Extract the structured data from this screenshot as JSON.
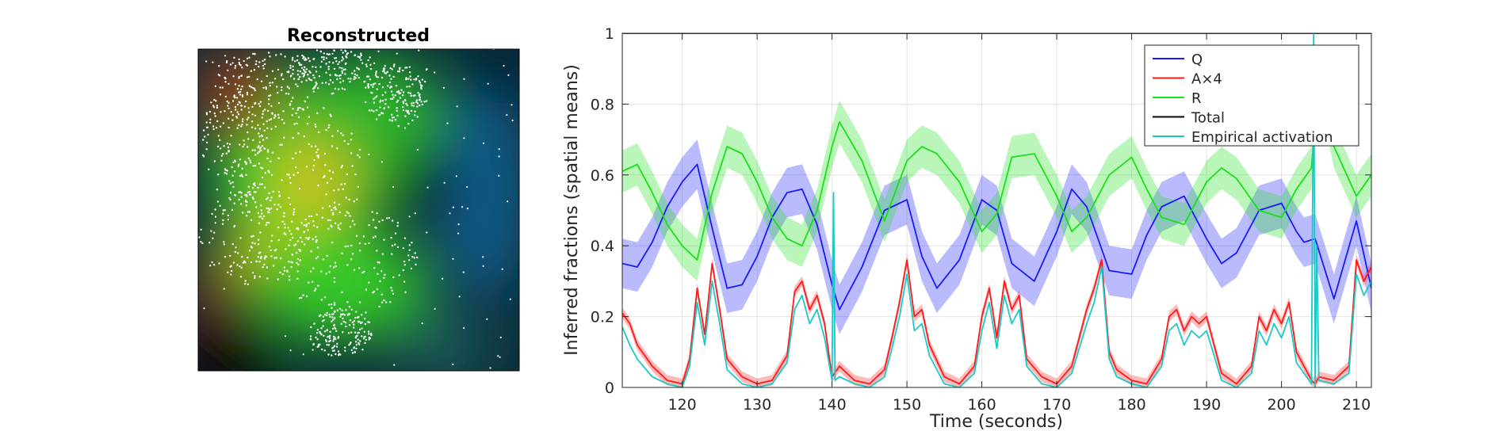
{
  "chart_data": [
    {
      "type": "heatmap",
      "title": "Reconstructed",
      "description_colors": [
        "#000000",
        "#7a1f1f",
        "#c9c21a",
        "#3ad12a",
        "#2a7a2a",
        "#0b5c8a",
        "#06264a"
      ]
    },
    {
      "type": "line",
      "title": "",
      "xlabel": "Time (seconds)",
      "ylabel": "Inferred fractions (spatial means)",
      "xlim": [
        112,
        212
      ],
      "ylim": [
        0,
        1
      ],
      "xticks": [
        "120",
        "130",
        "140",
        "150",
        "160",
        "170",
        "180",
        "190",
        "200",
        "210"
      ],
      "yticks": [
        "0",
        "0.2",
        "0.4",
        "0.6",
        "0.8",
        "1"
      ],
      "grid": true,
      "legend_position": "top-right",
      "series": [
        {
          "name": "Q",
          "color": "#1a1aff",
          "x": [
            112,
            114,
            116,
            118,
            120,
            122,
            124,
            126,
            128,
            130,
            132,
            134,
            136,
            138,
            140,
            141,
            144,
            147,
            150,
            152,
            154,
            157,
            160,
            162,
            164,
            167,
            170,
            172,
            174,
            177,
            180,
            182,
            184,
            187,
            190,
            192,
            194,
            197,
            200,
            202,
            203,
            204.5,
            207,
            210,
            212
          ],
          "y": [
            0.35,
            0.34,
            0.41,
            0.51,
            0.58,
            0.63,
            0.45,
            0.28,
            0.29,
            0.37,
            0.48,
            0.55,
            0.56,
            0.46,
            0.29,
            0.22,
            0.34,
            0.5,
            0.53,
            0.37,
            0.28,
            0.36,
            0.53,
            0.5,
            0.35,
            0.3,
            0.44,
            0.56,
            0.51,
            0.33,
            0.32,
            0.43,
            0.51,
            0.54,
            0.42,
            0.35,
            0.38,
            0.5,
            0.52,
            0.44,
            0.41,
            0.42,
            0.25,
            0.47,
            0.28
          ]
        },
        {
          "name": "A×4",
          "color": "#ff1a1a",
          "x": [
            112,
            113,
            114,
            116,
            118,
            120,
            121,
            122,
            123,
            124,
            125,
            126,
            128,
            130,
            132,
            134,
            135,
            136,
            137,
            138,
            139,
            140,
            141,
            143,
            145,
            147,
            148,
            149,
            150,
            151,
            152,
            153,
            155,
            157,
            159,
            160,
            161,
            162,
            163,
            164,
            165,
            166,
            168,
            170,
            172,
            174,
            175,
            176,
            177,
            178,
            180,
            182,
            184,
            185,
            186,
            187,
            188,
            189,
            190,
            191,
            192,
            194,
            196,
            197,
            198,
            199,
            200,
            201,
            202,
            203,
            204,
            204.5,
            205,
            207,
            209,
            210,
            211,
            212
          ],
          "y": [
            0.21,
            0.18,
            0.12,
            0.06,
            0.02,
            0.01,
            0.08,
            0.28,
            0.15,
            0.35,
            0.22,
            0.08,
            0.03,
            0.01,
            0.02,
            0.09,
            0.27,
            0.3,
            0.22,
            0.26,
            0.18,
            0.03,
            0.06,
            0.02,
            0.01,
            0.05,
            0.14,
            0.24,
            0.36,
            0.2,
            0.22,
            0.12,
            0.03,
            0.01,
            0.06,
            0.2,
            0.28,
            0.14,
            0.3,
            0.22,
            0.26,
            0.08,
            0.03,
            0.01,
            0.06,
            0.22,
            0.28,
            0.36,
            0.1,
            0.05,
            0.02,
            0.01,
            0.08,
            0.2,
            0.22,
            0.16,
            0.2,
            0.18,
            0.2,
            0.12,
            0.04,
            0.01,
            0.06,
            0.2,
            0.16,
            0.22,
            0.18,
            0.24,
            0.1,
            0.06,
            0.02,
            0.01,
            0.03,
            0.02,
            0.06,
            0.36,
            0.3,
            0.34
          ]
        },
        {
          "name": "R",
          "color": "#1ae01a",
          "x": [
            112,
            114,
            116,
            118,
            120,
            122,
            124,
            126,
            128,
            130,
            132,
            134,
            136,
            138,
            140,
            141,
            144,
            147,
            150,
            152,
            154,
            157,
            160,
            162,
            164,
            167,
            170,
            172,
            174,
            177,
            180,
            182,
            184,
            187,
            190,
            192,
            194,
            197,
            200,
            202,
            204,
            205,
            207,
            210,
            212
          ],
          "y": [
            0.61,
            0.63,
            0.55,
            0.46,
            0.4,
            0.36,
            0.55,
            0.68,
            0.66,
            0.58,
            0.48,
            0.42,
            0.4,
            0.5,
            0.68,
            0.75,
            0.64,
            0.47,
            0.64,
            0.68,
            0.66,
            0.58,
            0.44,
            0.49,
            0.65,
            0.66,
            0.54,
            0.44,
            0.48,
            0.6,
            0.65,
            0.56,
            0.48,
            0.46,
            0.58,
            0.62,
            0.59,
            0.5,
            0.48,
            0.56,
            0.62,
            0.88,
            0.68,
            0.54,
            0.6
          ]
        },
        {
          "name": "Total",
          "color": "#000000",
          "x": [
            112,
            212
          ],
          "y": [
            1,
            1
          ]
        },
        {
          "name": "Empirical activation",
          "color": "#1ac8c8",
          "x": [
            112,
            113,
            114,
            116,
            118,
            120,
            121,
            122,
            123,
            124,
            125,
            126,
            128,
            130,
            132,
            134,
            135,
            136,
            137,
            138,
            139,
            140,
            140.2,
            140.4,
            141,
            143,
            145,
            147,
            148,
            149,
            150,
            151,
            152,
            153,
            155,
            157,
            159,
            160,
            161,
            162,
            163,
            164,
            165,
            166,
            168,
            170,
            172,
            174,
            175,
            176,
            177,
            178,
            180,
            182,
            184,
            185,
            186,
            187,
            188,
            189,
            190,
            191,
            192,
            194,
            196,
            197,
            198,
            199,
            200,
            201,
            202,
            203,
            204,
            204.3,
            204.5,
            204.7,
            205,
            207,
            209,
            210,
            211,
            212
          ],
          "y": [
            0.17,
            0.12,
            0.08,
            0.03,
            0.01,
            0.0,
            0.06,
            0.24,
            0.12,
            0.3,
            0.18,
            0.05,
            0.01,
            0.0,
            0.01,
            0.07,
            0.22,
            0.26,
            0.18,
            0.22,
            0.14,
            0.02,
            0.55,
            0.02,
            0.03,
            0.01,
            0.0,
            0.03,
            0.11,
            0.2,
            0.32,
            0.16,
            0.18,
            0.09,
            0.01,
            0.0,
            0.04,
            0.16,
            0.24,
            0.11,
            0.26,
            0.18,
            0.22,
            0.06,
            0.01,
            0.0,
            0.04,
            0.18,
            0.24,
            0.34,
            0.08,
            0.03,
            0.01,
            0.0,
            0.06,
            0.16,
            0.18,
            0.12,
            0.16,
            0.14,
            0.16,
            0.09,
            0.02,
            0.0,
            0.04,
            0.16,
            0.12,
            0.18,
            0.14,
            0.2,
            0.07,
            0.04,
            0.01,
            1.0,
            0.0,
            0.4,
            0.02,
            0.01,
            0.04,
            0.32,
            0.26,
            0.3
          ]
        }
      ]
    }
  ]
}
